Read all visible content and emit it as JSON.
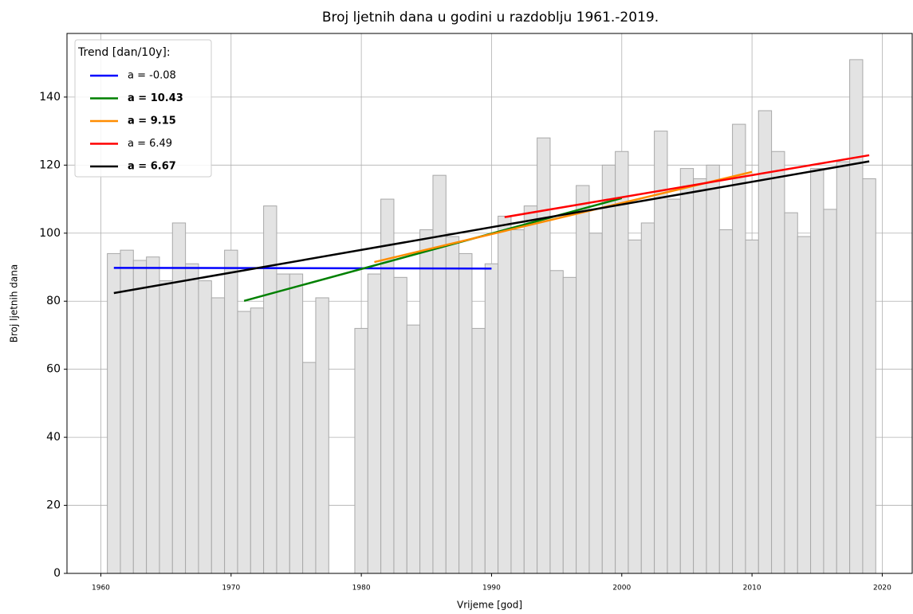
{
  "chart_data": {
    "type": "bar",
    "title": "Broj ljetnih dana u godini u razdoblju 1961.-2019.",
    "xlabel": "Vrijeme [god]",
    "ylabel": "Broj ljetnih dana",
    "x": [
      1961,
      1962,
      1963,
      1964,
      1965,
      1966,
      1967,
      1968,
      1969,
      1970,
      1971,
      1972,
      1973,
      1974,
      1975,
      1976,
      1977,
      1978,
      1979,
      1980,
      1981,
      1982,
      1983,
      1984,
      1985,
      1986,
      1987,
      1988,
      1989,
      1990,
      1991,
      1992,
      1993,
      1994,
      1995,
      1996,
      1997,
      1998,
      1999,
      2000,
      2001,
      2002,
      2003,
      2004,
      2005,
      2006,
      2007,
      2008,
      2009,
      2010,
      2011,
      2012,
      2013,
      2014,
      2015,
      2016,
      2017,
      2018,
      2019
    ],
    "values": [
      94,
      95,
      92,
      93,
      86,
      103,
      91,
      86,
      81,
      95,
      77,
      78,
      108,
      88,
      88,
      62,
      81,
      null,
      null,
      72,
      88,
      110,
      87,
      73,
      101,
      117,
      99,
      94,
      72,
      91,
      105,
      101,
      108,
      128,
      89,
      87,
      114,
      100,
      120,
      124,
      98,
      103,
      130,
      110,
      119,
      116,
      120,
      101,
      132,
      98,
      136,
      124,
      106,
      99,
      119,
      107,
      121,
      151,
      116
    ],
    "color": "#e3e3e3",
    "edgecolor": "#a8a8a8",
    "legend_title": "Trend [dan/10y]:",
    "series": [
      {
        "name": "a = -0.08",
        "color": "#0000ff",
        "bold": false,
        "x": [
          1961,
          1990
        ],
        "values": [
          89.8,
          89.6
        ]
      },
      {
        "name": "a = 10.43",
        "color": "#008000",
        "bold": true,
        "x": [
          1971,
          2000
        ],
        "values": [
          80.1,
          110.3
        ]
      },
      {
        "name": "a = 9.15",
        "color": "#ff8c00",
        "bold": true,
        "x": [
          1981,
          2010
        ],
        "values": [
          91.5,
          118.0
        ]
      },
      {
        "name": "a = 6.49",
        "color": "#ff0000",
        "bold": false,
        "x": [
          1991,
          2019
        ],
        "values": [
          104.7,
          122.9
        ]
      },
      {
        "name": "a = 6.67",
        "color": "#000000",
        "bold": true,
        "x": [
          1961,
          2019
        ],
        "values": [
          82.4,
          121.1
        ]
      }
    ],
    "xlim": [
      1957.4,
      2022.3
    ],
    "ylim": [
      0,
      158.7
    ],
    "xticks": [
      1960,
      1970,
      1980,
      1990,
      2000,
      2010,
      2020
    ],
    "yticks": [
      0,
      20,
      40,
      60,
      80,
      100,
      120,
      140
    ],
    "grid": true,
    "legend_position": "upper left"
  }
}
